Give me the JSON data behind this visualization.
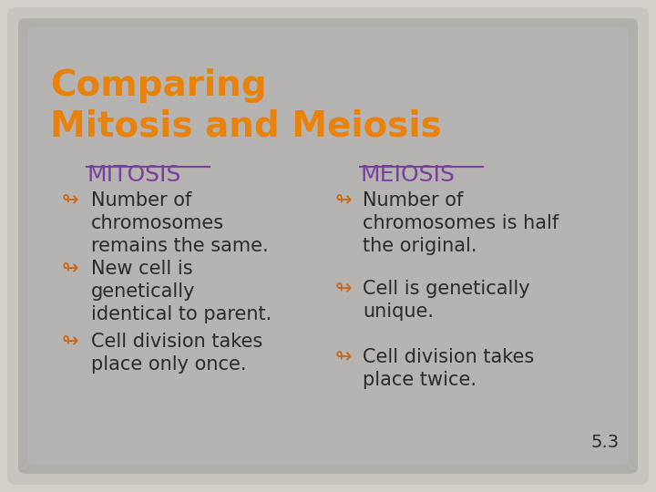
{
  "bg_outer": "#d4cfc9",
  "bg_inner": "#b8b4b0",
  "bg_slide": "#a8a5a2",
  "title": "Comparing\nMitosis and Meiosis",
  "title_color": "#e8820a",
  "title_fontsize": 28,
  "title_bold": true,
  "col1_header": "MITOSIS",
  "col2_header": "MEIOSIS",
  "header_color": "#7b3fa0",
  "header_fontsize": 18,
  "bullet_color": "#c8681a",
  "text_color": "#2a2a2a",
  "bullet_fontsize": 15,
  "col1_bullets": [
    "Number of\nchromosomes\nremains the same.",
    "New cell is\ngenetically\nidentical to parent.",
    "Cell division takes\nplace only once."
  ],
  "col2_bullets": [
    "Number of\nchromosomes is half\nthe original.",
    "Cell is genetically\nunique.",
    "Cell division takes\nplace twice."
  ],
  "page_num": "5.3",
  "slide_bg": "#9e9c9a",
  "inner_bg": "#b0aeac"
}
